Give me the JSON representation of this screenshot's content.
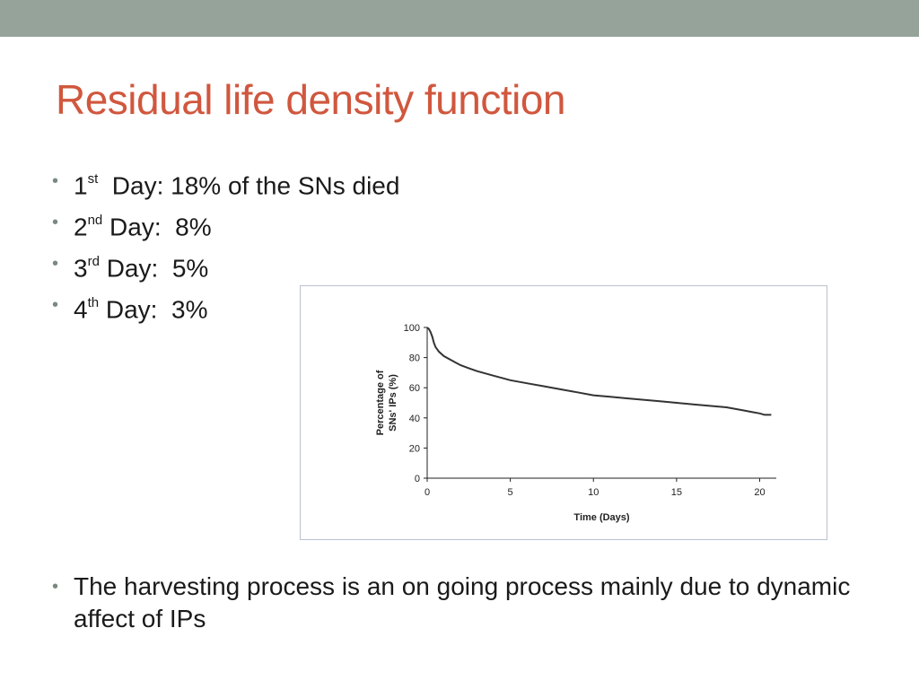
{
  "slide": {
    "title": "Residual life density function",
    "bullets": [
      {
        "num": "1",
        "suffix": "st",
        "text": "  Day: 18% of the SNs died"
      },
      {
        "num": "2",
        "suffix": "nd",
        "text": " Day:  8%"
      },
      {
        "num": "3",
        "suffix": "rd",
        "text": " Day:  5%"
      },
      {
        "num": "4",
        "suffix": "th",
        "text": " Day:  3%"
      }
    ],
    "last_bullet": "The harvesting process is an on going process mainly due to dynamic affect of IPs"
  },
  "colors": {
    "top_bar": "#95a39a",
    "title": "#d0573e",
    "curve": "#333333"
  },
  "chart_data": {
    "type": "line",
    "ylabel_line1": "Percentage of",
    "ylabel_line2": "SNs' IPs (%)",
    "xlabel": "Time (Days)",
    "xlim": [
      0,
      21
    ],
    "ylim": [
      0,
      100
    ],
    "xticks": [
      "0",
      "5",
      "10",
      "15",
      "20"
    ],
    "yticks": [
      "0",
      "20",
      "40",
      "60",
      "80",
      "100"
    ],
    "series": [
      {
        "x": [
          0,
          0.1,
          0.2,
          0.3,
          0.4,
          0.5,
          0.7,
          1,
          1.5,
          2,
          2.5,
          3,
          4,
          5,
          6,
          7,
          8,
          9,
          10,
          11,
          12,
          13,
          14,
          15,
          16,
          17,
          18,
          19,
          19.5,
          20,
          20.3,
          20.7
        ],
        "y": [
          100,
          99,
          97,
          94,
          90,
          87,
          84,
          81,
          78,
          75,
          73,
          71,
          68,
          65,
          63,
          61,
          59,
          57,
          55,
          54,
          53,
          52,
          51,
          50,
          49,
          48,
          47,
          45,
          44,
          43,
          42,
          42
        ]
      }
    ]
  }
}
